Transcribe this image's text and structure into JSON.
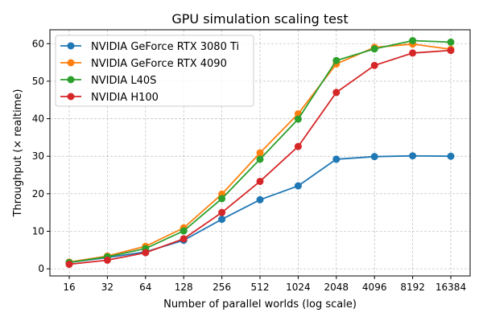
{
  "chart_data": {
    "type": "line",
    "title": "GPU simulation scaling test",
    "xlabel": "Number of parallel worlds (log scale)",
    "ylabel": "Throughput (× realtime)",
    "x_scale": "log2",
    "x": [
      16,
      32,
      64,
      128,
      256,
      512,
      1024,
      2048,
      4096,
      8192,
      16384
    ],
    "x_tick_labels": [
      "16",
      "32",
      "64",
      "128",
      "256",
      "512",
      "1024",
      "2048",
      "4096",
      "8192",
      "16384"
    ],
    "y_ticks": [
      0,
      10,
      20,
      30,
      40,
      50,
      60
    ],
    "ylim": [
      -1.9,
      63.7
    ],
    "grid": true,
    "legend_position": "top-left",
    "series": [
      {
        "name": "NVIDIA GeForce RTX 3080 Ti",
        "color": "#1f77b4",
        "values": [
          1.7,
          3.0,
          4.5,
          7.6,
          13.2,
          18.4,
          22.1,
          29.2,
          29.9,
          30.1,
          30.0
        ]
      },
      {
        "name": "NVIDIA GeForce RTX 4090",
        "color": "#ff7f0e",
        "values": [
          1.8,
          3.4,
          6.0,
          10.9,
          19.9,
          30.9,
          41.3,
          54.6,
          59.0,
          59.9,
          58.5
        ]
      },
      {
        "name": "NVIDIA L40S",
        "color": "#2ca02c",
        "values": [
          1.7,
          3.2,
          5.4,
          10.1,
          18.7,
          29.2,
          39.9,
          55.5,
          58.6,
          60.8,
          60.4
        ]
      },
      {
        "name": "NVIDIA H100",
        "color": "#d62728",
        "values": [
          1.2,
          2.3,
          4.3,
          8.0,
          15.0,
          23.3,
          32.6,
          47.0,
          54.2,
          57.5,
          58.2
        ]
      }
    ]
  }
}
